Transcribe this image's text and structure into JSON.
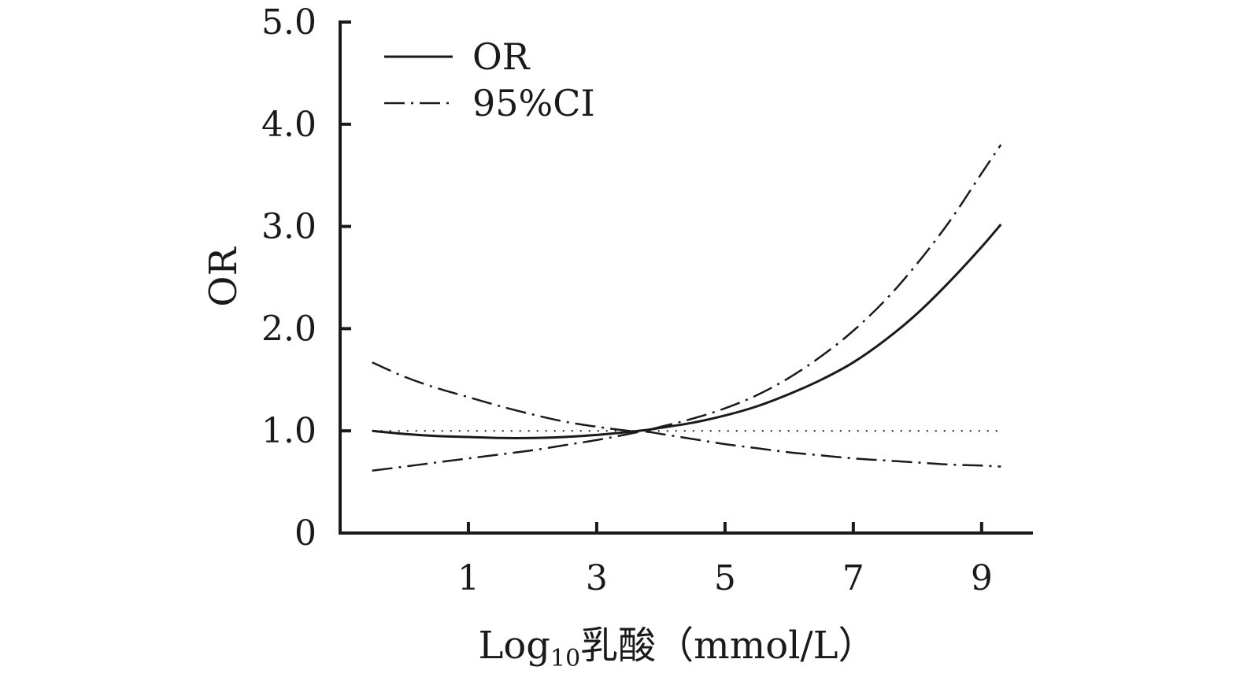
{
  "chart_data": {
    "type": "line",
    "title": "",
    "xlabel": "Log₁₀乳酸（mmol/L）",
    "xlabel_parts": {
      "main": "Log",
      "sub": "10",
      "rest": "乳酸（mmol/L）"
    },
    "ylabel": "OR",
    "xlim": [
      -1.0,
      9.8
    ],
    "ylim": [
      0,
      5.0
    ],
    "x_ticks": [
      1,
      3,
      5,
      7,
      9
    ],
    "x_tick_labels": [
      "1",
      "3",
      "5",
      "7",
      "9"
    ],
    "y_ticks": [
      0,
      1.0,
      2.0,
      3.0,
      4.0,
      5.0
    ],
    "y_tick_labels": [
      "0",
      "1.0",
      "2.0",
      "3.0",
      "4.0",
      "5.0"
    ],
    "grid": false,
    "legend": {
      "placement": "top-left",
      "entries": [
        {
          "label": "OR",
          "style": "solid"
        },
        {
          "label": "95%CI",
          "style": "dash-dot"
        }
      ]
    },
    "reference_line": {
      "y": 1.0,
      "x_from": -0.5,
      "x_to": 9.3,
      "style": "dotted"
    },
    "series": [
      {
        "name": "OR",
        "style": "solid",
        "x": [
          -0.5,
          0.0,
          0.5,
          1.0,
          1.5,
          2.0,
          2.5,
          3.0,
          3.5,
          3.8,
          4.0,
          4.5,
          5.0,
          5.5,
          6.0,
          6.5,
          7.0,
          7.5,
          8.0,
          8.5,
          9.0,
          9.3
        ],
        "y": [
          1.0,
          0.97,
          0.95,
          0.94,
          0.93,
          0.93,
          0.94,
          0.96,
          0.99,
          1.01,
          1.03,
          1.08,
          1.15,
          1.24,
          1.36,
          1.5,
          1.67,
          1.89,
          2.15,
          2.46,
          2.8,
          3.02
        ]
      },
      {
        "name": "95%CI",
        "style": "dash-dot",
        "x": [
          -0.5,
          0.0,
          0.5,
          1.0,
          1.5,
          2.0,
          2.5,
          3.0,
          3.5,
          3.8,
          4.0,
          4.5,
          5.0,
          5.5,
          6.0,
          6.5,
          7.0,
          7.5,
          8.0,
          8.5,
          9.0,
          9.3
        ],
        "y": [
          0.61,
          0.65,
          0.69,
          0.73,
          0.77,
          0.81,
          0.86,
          0.91,
          0.97,
          1.01,
          1.04,
          1.12,
          1.22,
          1.35,
          1.52,
          1.73,
          1.98,
          2.28,
          2.64,
          3.05,
          3.52,
          3.8
        ]
      },
      {
        "name": "95%CI",
        "style": "dash-dot",
        "x": [
          -0.5,
          0.0,
          0.5,
          1.0,
          1.5,
          2.0,
          2.5,
          3.0,
          3.5,
          3.8,
          4.0,
          4.5,
          5.0,
          5.5,
          6.0,
          6.5,
          7.0,
          7.5,
          8.0,
          8.5,
          9.0,
          9.3
        ],
        "y": [
          1.67,
          1.53,
          1.42,
          1.33,
          1.24,
          1.16,
          1.09,
          1.04,
          1.0,
          0.99,
          0.97,
          0.92,
          0.87,
          0.83,
          0.79,
          0.76,
          0.73,
          0.71,
          0.69,
          0.67,
          0.66,
          0.65
        ]
      }
    ]
  }
}
